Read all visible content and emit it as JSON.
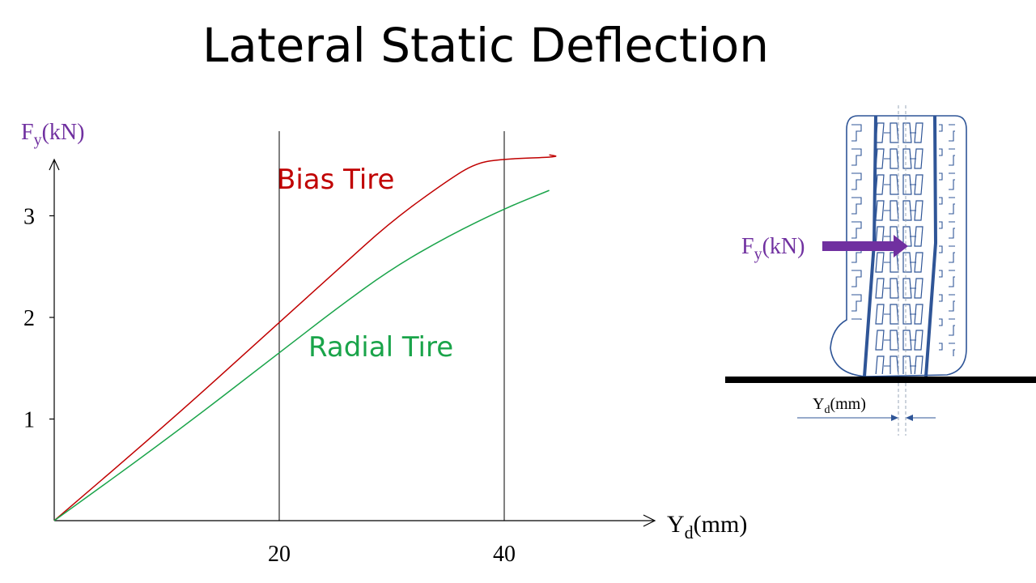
{
  "title": "Lateral Static Deflection",
  "chart_data": {
    "type": "line",
    "title": "Lateral Static Deflection",
    "xlabel": "Y",
    "xlabel_sub": "d",
    "xlabel_unit": "(mm)",
    "ylabel": "F",
    "ylabel_sub": "y",
    "ylabel_unit": "(kN)",
    "xlim": [
      0,
      54
    ],
    "ylim": [
      0,
      3.9
    ],
    "x_ticks": [
      20,
      40
    ],
    "y_ticks": [
      1,
      2,
      3
    ],
    "vertical_gridlines": [
      20,
      40
    ],
    "series": [
      {
        "name": "Bias Tire",
        "color": "#c00000",
        "x": [
          0,
          10,
          20,
          25,
          30,
          35,
          37.5,
          40,
          45,
          44
        ],
        "y": [
          0,
          0.95,
          1.95,
          2.45,
          2.95,
          3.35,
          3.52,
          3.56,
          3.58,
          3.6
        ]
      },
      {
        "name": "Radial Tire",
        "color": "#1aa44a",
        "x": [
          0,
          10,
          20,
          25,
          30,
          35,
          40,
          44
        ],
        "y": [
          0,
          0.8,
          1.65,
          2.08,
          2.48,
          2.8,
          3.07,
          3.25
        ]
      }
    ],
    "annotations": [
      "Bias Tire",
      "Radial Tire"
    ]
  },
  "diagram": {
    "force_label": "F",
    "force_sub": "y",
    "force_unit": "(kN)",
    "deflection_label": "Y",
    "deflection_sub": "d",
    "deflection_unit": "(mm)",
    "force_color": "#7030a0",
    "tire_color": "#2f5597"
  }
}
